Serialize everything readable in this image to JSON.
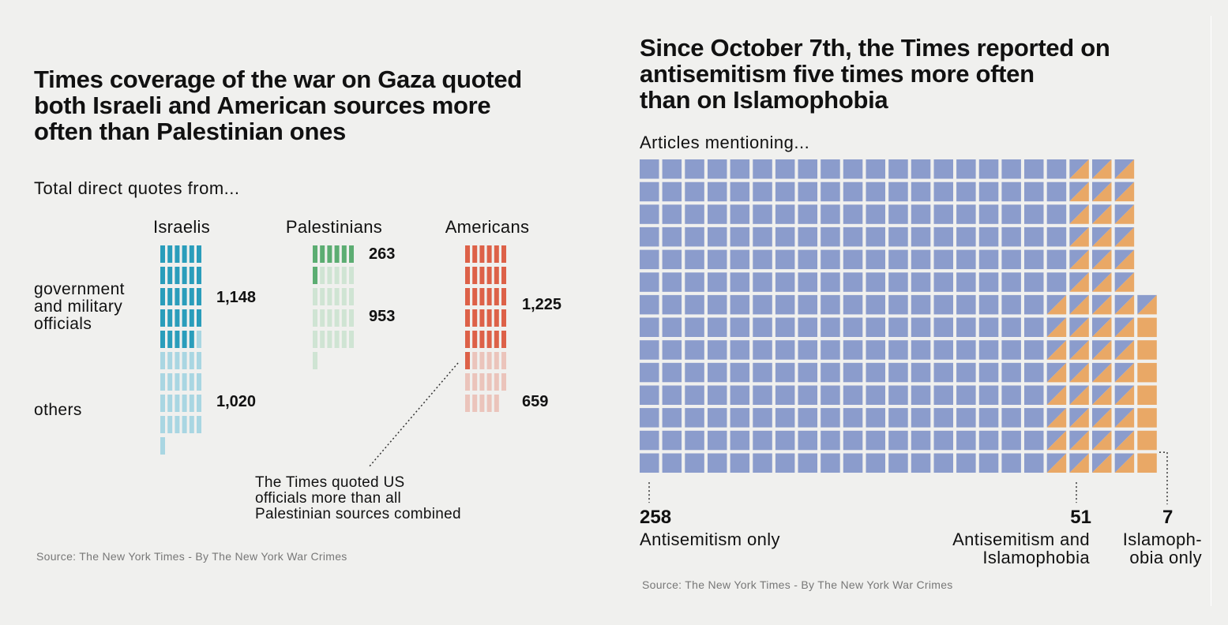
{
  "left": {
    "title": "Times coverage of the war on Gaza quoted\nboth Israeli and American sources more\noften than Palestinian ones",
    "subtitle": "Total direct quotes from...",
    "row_labels": {
      "government": "government\nand military\nofficials",
      "others": "others"
    },
    "note": "The Times quoted US\nofficials more than all\nPalestinian sources combined",
    "source": "Source: The New York Times - By The New York War Crimes"
  },
  "right": {
    "title": "Since October 7th, the Times reported on\nantisemitism five times more often\nthan on Islamophobia",
    "subtitle": "Articles mentioning...",
    "source": "Source: The New York Times - By The New York War Crimes"
  },
  "colors": {
    "israeli_gov": "#2a9dbb",
    "israeli_oth": "#a9d6e2",
    "pal_gov": "#5cad72",
    "pal_oth": "#cfe4d3",
    "us_gov": "#dd6148",
    "us_oth": "#ebc4bb",
    "antisemitism": "#8b9ccc",
    "islamophobia": "#e9a866"
  },
  "chart_data": [
    {
      "type": "bar",
      "title": "Times coverage of the war on Gaza quoted both Israeli and American sources more often than Palestinian ones",
      "subtitle": "Total direct quotes from...",
      "categories": [
        "Israelis",
        "Palestinians",
        "Americans"
      ],
      "series": [
        {
          "name": "government and military officials",
          "values": [
            1148,
            263,
            1225
          ],
          "labels": [
            "1,148",
            "263",
            "1,225"
          ]
        },
        {
          "name": "others",
          "values": [
            1020,
            953,
            659
          ],
          "labels": [
            "1,020",
            "953",
            "659"
          ]
        }
      ],
      "unit_per_icon": 40
    },
    {
      "type": "bar",
      "title": "Since October 7th, the Times reported on antisemitism five times more often than on Islamophobia",
      "subtitle": "Articles mentioning...",
      "categories": [
        "Antisemitism only",
        "Antisemitism and\nIslamophobia",
        "Islamoph-\nobia only"
      ],
      "values": [
        258,
        51,
        7
      ],
      "value_labels": [
        "258",
        "51",
        "7"
      ]
    }
  ]
}
